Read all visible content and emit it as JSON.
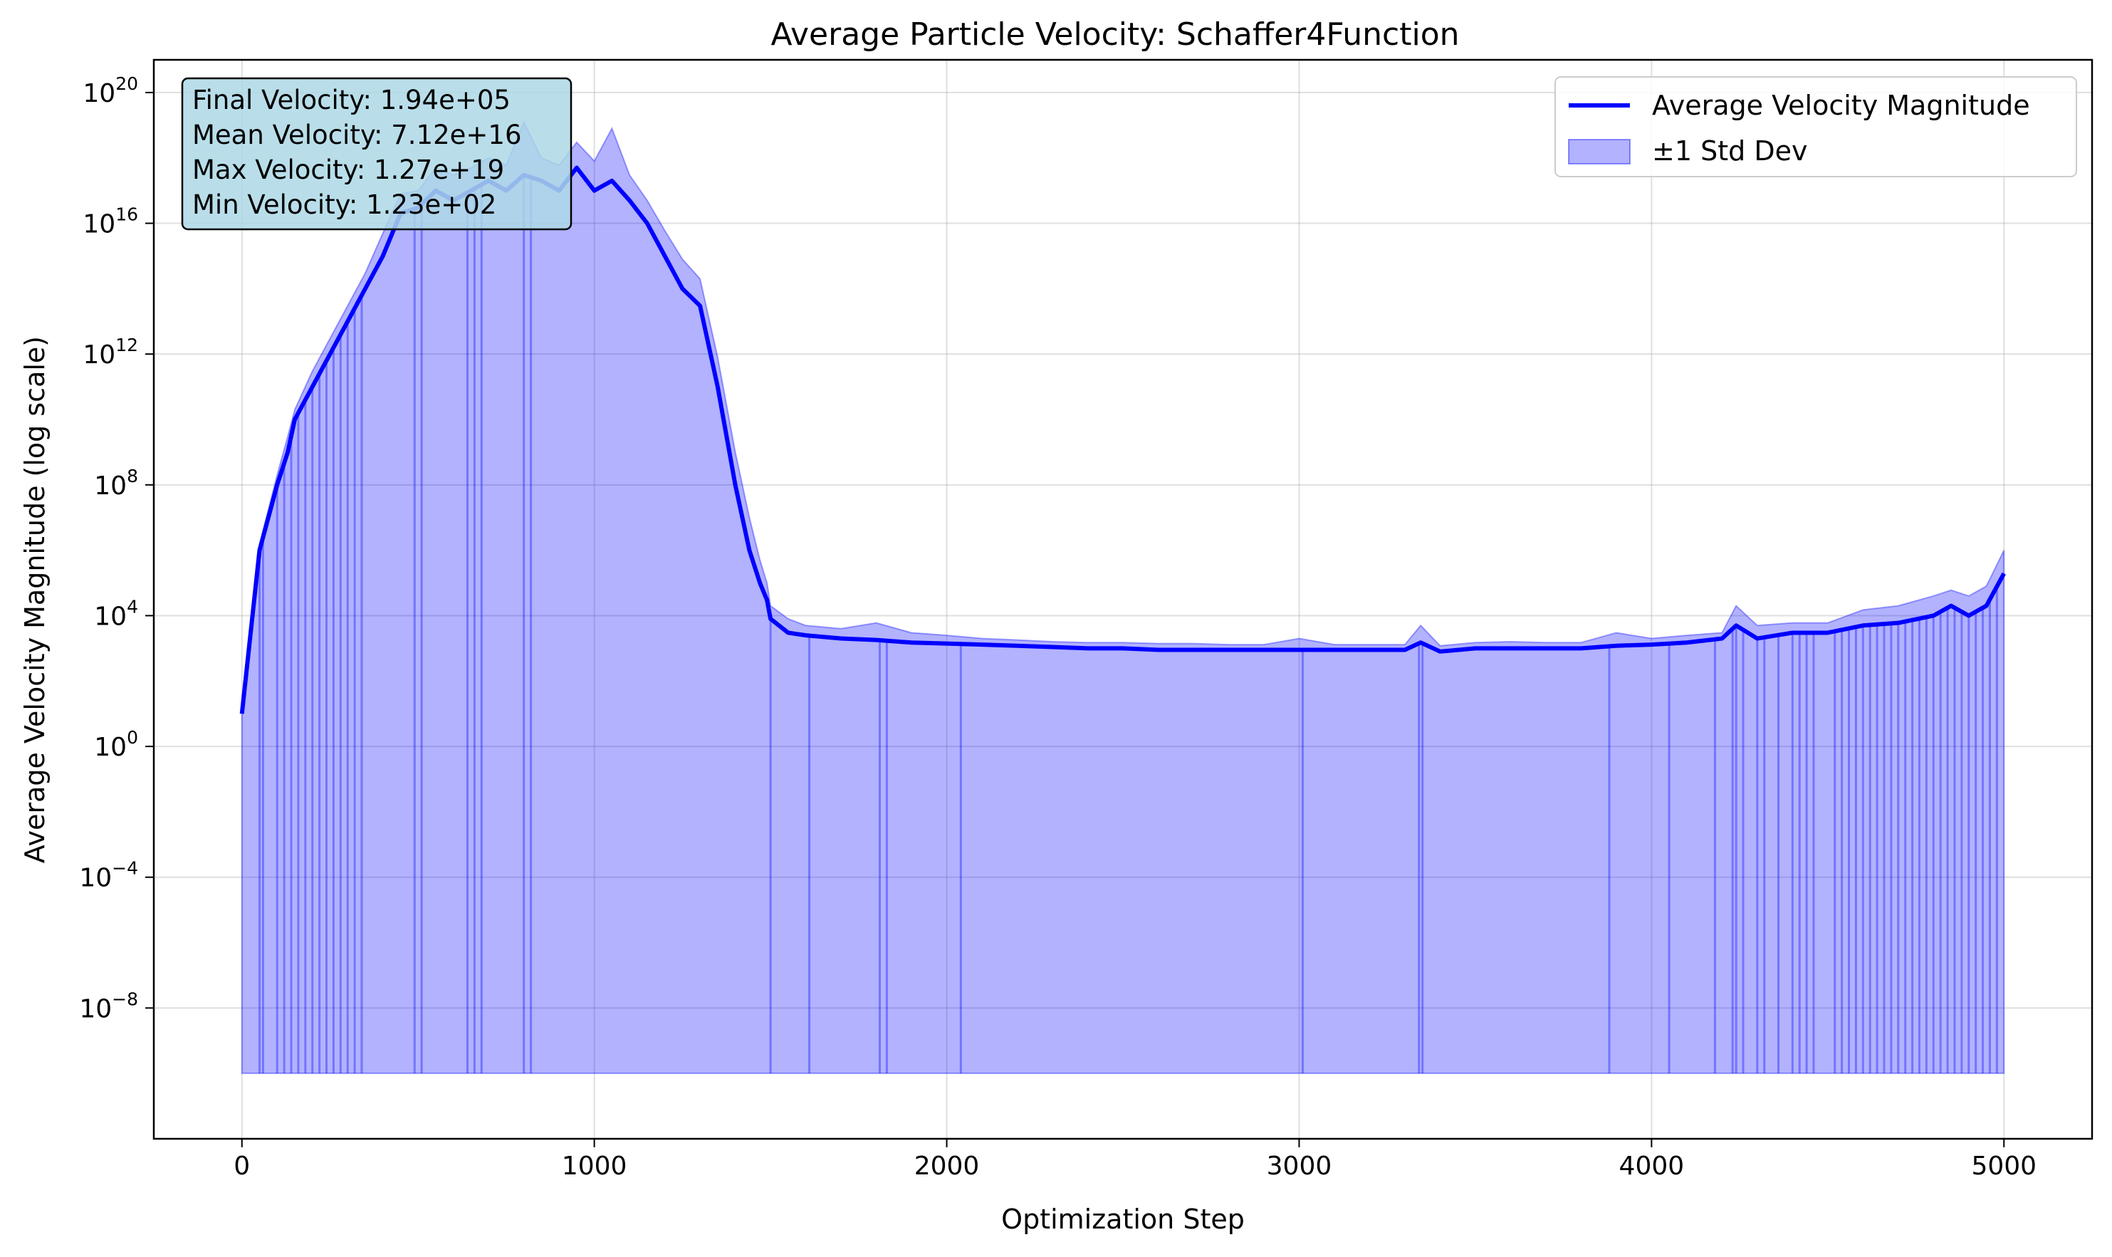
{
  "chart_data": {
    "type": "line",
    "title": "Average Particle Velocity: Schaffer4Function",
    "xlabel": "Optimization Step",
    "ylabel": "Average Velocity Magnitude (log scale)",
    "xlim": [
      -250,
      5250
    ],
    "ylim": [
      1e-12,
      1e+21
    ],
    "yscale": "log",
    "grid": true,
    "legend_position": "top-right",
    "x_ticks": [
      {
        "value": 0,
        "label": "0"
      },
      {
        "value": 1000,
        "label": "1000"
      },
      {
        "value": 2000,
        "label": "2000"
      },
      {
        "value": 3000,
        "label": "3000"
      },
      {
        "value": 4000,
        "label": "4000"
      },
      {
        "value": 5000,
        "label": "5000"
      }
    ],
    "y_ticks": [
      {
        "value": 1e-08,
        "base": "10",
        "exp": "−8"
      },
      {
        "value": 0.0001,
        "base": "10",
        "exp": "−4"
      },
      {
        "value": 1,
        "base": "10",
        "exp": "0"
      },
      {
        "value": 10000.0,
        "base": "10",
        "exp": "4"
      },
      {
        "value": 100000000.0,
        "base": "10",
        "exp": "8"
      },
      {
        "value": 1000000000000.0,
        "base": "10",
        "exp": "12"
      },
      {
        "value": 1e+16,
        "base": "10",
        "exp": "16"
      },
      {
        "value": 1e+20,
        "base": "10",
        "exp": "20"
      }
    ],
    "series": [
      {
        "name": "Average Velocity Magnitude",
        "color": "#0000ff",
        "x": [
          0,
          20,
          50,
          100,
          130,
          150,
          200,
          250,
          300,
          350,
          400,
          450,
          500,
          550,
          600,
          650,
          700,
          750,
          800,
          850,
          900,
          950,
          1000,
          1050,
          1100,
          1150,
          1200,
          1250,
          1300,
          1350,
          1400,
          1440,
          1470,
          1490,
          1500,
          1550,
          1600,
          1700,
          1800,
          1900,
          2000,
          2100,
          2200,
          2300,
          2400,
          2500,
          2600,
          2700,
          2800,
          2900,
          3000,
          3100,
          3200,
          3300,
          3345,
          3400,
          3500,
          3600,
          3700,
          3800,
          3900,
          4000,
          4100,
          4200,
          4240,
          4300,
          4400,
          4500,
          4600,
          4700,
          4800,
          4850,
          4900,
          4950,
          5000
        ],
        "values": [
          10.0,
          1000.0,
          1000000.0,
          100000000.0,
          1000000000.0,
          10000000000.0,
          100000000000.0,
          1000000000000.0,
          10000000000000.0,
          100000000000000.0,
          1000000000000000.0,
          2e+16,
          3e+16,
          1e+17,
          5e+16,
          1e+17,
          2e+17,
          1e+17,
          3e+17,
          2e+17,
          1e+17,
          5e+17,
          1e+17,
          2e+17,
          5e+16,
          1e+16,
          1000000000000000.0,
          100000000000000.0,
          30000000000000.0,
          100000000000.0,
          100000000.0,
          1000000.0,
          100000.0,
          30000.0,
          8000.0,
          3000.0,
          2500.0,
          2000.0,
          1800.0,
          1500.0,
          1400.0,
          1300.0,
          1200.0,
          1100.0,
          1000.0,
          1000.0,
          900.0,
          900.0,
          900.0,
          900.0,
          900.0,
          900.0,
          900.0,
          900.0,
          1500.0,
          800.0,
          1000.0,
          1000.0,
          1000.0,
          1000.0,
          1200.0,
          1300.0,
          1500.0,
          2000.0,
          5000.0,
          2000.0,
          3000.0,
          3000.0,
          5000.0,
          6000.0,
          10000.0,
          20000.0,
          10000.0,
          20000.0,
          194000.0
        ]
      },
      {
        "name": "±1 Std Dev",
        "color": "#0000ff",
        "upper": [
          10.0,
          1000.0,
          1500000.0,
          200000000.0,
          3000000000.0,
          20000000000.0,
          300000000000.0,
          3000000000000.0,
          30000000000000.0,
          300000000000000.0,
          5000000000000000.0,
          8e+16,
          1e+17,
          5e+17,
          3e+17,
          5e+17,
          1e+18,
          6e+17,
          1.27e+19,
          1e+18,
          6e+17,
          3e+18,
          8e+17,
          8e+18,
          3e+17,
          5e+16,
          6000000000000000.0,
          800000000000000.0,
          200000000000000.0,
          800000000000.0,
          1000000000.0,
          10000000.0,
          500000.0,
          100000.0,
          20000.0,
          8000.0,
          5000.0,
          4000.0,
          6000.0,
          3000.0,
          2500.0,
          2000.0,
          1800.0,
          1600.0,
          1500.0,
          1500.0,
          1400.0,
          1400.0,
          1300.0,
          1300.0,
          2000.0,
          1300.0,
          1300.0,
          1300.0,
          5000.0,
          1200.0,
          1500.0,
          1600.0,
          1500.0,
          1500.0,
          3000.0,
          2000.0,
          2500.0,
          3000.0,
          20000.0,
          5000.0,
          6000.0,
          6000.0,
          15000.0,
          20000.0,
          40000.0,
          60000.0,
          40000.0,
          80000.0,
          1000000.0
        ]
      }
    ],
    "fill_lower": 1e-10,
    "fill_lower_dips_x": [
      50,
      60,
      100,
      120,
      140,
      160,
      180,
      200,
      220,
      240,
      260,
      280,
      300,
      320,
      340,
      490,
      510,
      640,
      660,
      680,
      800,
      820,
      1500,
      1610,
      1810,
      1830,
      2040,
      3010,
      3340,
      3350,
      3880,
      4050,
      4180,
      4230,
      4240,
      4260,
      4300,
      4320,
      4360,
      4400,
      4420,
      4440,
      4460,
      4520,
      4540,
      4560,
      4580,
      4600,
      4620,
      4640,
      4660,
      4680,
      4700,
      4720,
      4740,
      4760,
      4780,
      4800,
      4820,
      4840,
      4860,
      4880,
      4900,
      4920,
      4940,
      4960,
      4980
    ],
    "stats": {
      "final_velocity": "Final Velocity: 1.94e+05",
      "mean_velocity": "Mean Velocity: 7.12e+16",
      "max_velocity": "Max Velocity: 1.27e+19",
      "min_velocity": "Min Velocity: 1.23e+02"
    },
    "stats_box_color": "#add8e6"
  }
}
